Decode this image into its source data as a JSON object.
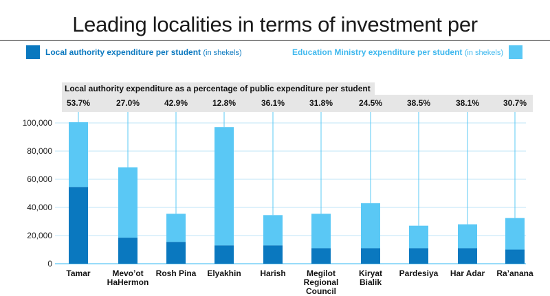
{
  "title": "Leading localities in terms of investment per",
  "legend": {
    "local_label": "Local authority expenditure per student",
    "local_note": "(in shekels)",
    "ministry_label": "Education Ministry expenditure per student",
    "ministry_note": "(in shekels)"
  },
  "percent_header": "Local authority expenditure as a percentage of public expenditure per student",
  "colors": {
    "local": "#0a78bf",
    "ministry": "#5ac8f5",
    "band": "#e6e6e6",
    "grid": "#bfe6f7"
  },
  "chart_data": {
    "type": "bar",
    "stacked": true,
    "categories": [
      "Tamar",
      "Mevo’ot HaHermon",
      "Rosh Pina",
      "Elyakhin",
      "Harish",
      "Megilot Regional Council",
      "Kiryat Bialik",
      "Pardesiya",
      "Har Adar",
      "Ra’anana"
    ],
    "category_lines": [
      [
        "Tamar"
      ],
      [
        "Mevo’ot",
        "HaHermon"
      ],
      [
        "Rosh Pina"
      ],
      [
        "Elyakhin"
      ],
      [
        "Harish"
      ],
      [
        "Megilot Regional",
        "Council"
      ],
      [
        "Kiryat",
        "Bialik"
      ],
      [
        "Pardesiya"
      ],
      [
        "Har Adar"
      ],
      [
        "Ra’anana"
      ]
    ],
    "series": [
      {
        "name": "Local authority expenditure per student",
        "values": [
          54500,
          18500,
          15500,
          13000,
          13000,
          11000,
          11000,
          11000,
          11000,
          10000
        ]
      },
      {
        "name": "Education Ministry expenditure per student",
        "values": [
          46000,
          50000,
          20000,
          84000,
          21500,
          24500,
          32000,
          16000,
          17000,
          22500
        ]
      }
    ],
    "percentages": [
      "53.7%",
      "27.0%",
      "42.9%",
      "12.8%",
      "36.1%",
      "31.8%",
      "24.5%",
      "38.5%",
      "38.1%",
      "30.7%"
    ],
    "ylim": [
      0,
      100000
    ],
    "yticks": [
      0,
      20000,
      40000,
      60000,
      80000,
      100000
    ],
    "ytick_labels": [
      "0",
      "20,000",
      "40,000",
      "60,000",
      "80,000",
      "100,000"
    ],
    "xlabel": "",
    "ylabel": "",
    "grid": true,
    "legend_position": "top"
  }
}
